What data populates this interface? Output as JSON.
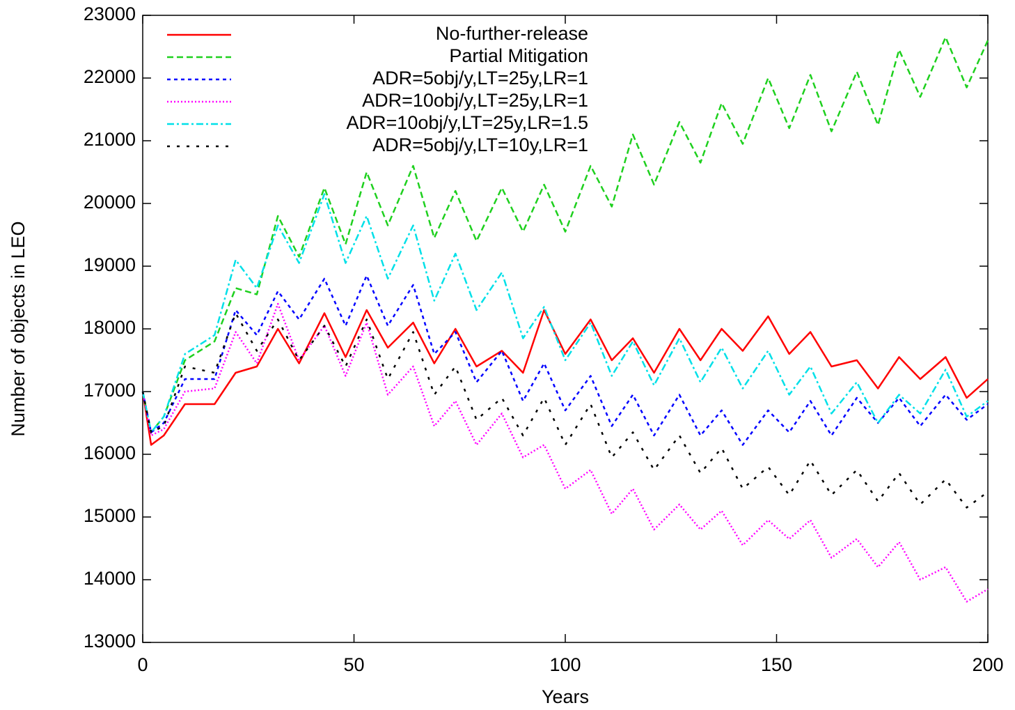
{
  "chart_data": {
    "type": "line",
    "xlabel": "Years",
    "ylabel": "Number of objects in LEO",
    "x": [
      0,
      2,
      5,
      10,
      17,
      22,
      27,
      32,
      37,
      43,
      48,
      53,
      58,
      64,
      69,
      74,
      79,
      85,
      90,
      95,
      100,
      106,
      111,
      116,
      121,
      127,
      132,
      137,
      142,
      148,
      153,
      158,
      163,
      169,
      174,
      179,
      184,
      190,
      195,
      200
    ],
    "xlim": [
      0,
      200
    ],
    "xticks": [
      0,
      50,
      100,
      150,
      200
    ],
    "ylim": [
      13000,
      23000
    ],
    "yticks": [
      13000,
      14000,
      15000,
      16000,
      17000,
      18000,
      19000,
      20000,
      21000,
      22000,
      23000
    ],
    "legend": "top-left",
    "series": [
      {
        "name": "No-further-release",
        "color": "#ff0000",
        "dash": "solid",
        "values": [
          17000,
          16150,
          16300,
          16800,
          16800,
          17300,
          17400,
          18000,
          17450,
          18250,
          17550,
          18300,
          17700,
          18100,
          17450,
          18000,
          17400,
          17650,
          17300,
          18300,
          17600,
          18150,
          17500,
          17850,
          17300,
          18000,
          17500,
          18000,
          17650,
          18200,
          17600,
          17950,
          17400,
          17500,
          17050,
          17550,
          17200,
          17550,
          16900,
          17200
        ]
      },
      {
        "name": "Partial Mitigation",
        "color": "#1ed01e",
        "dash": "dashed",
        "values": [
          17000,
          16350,
          16600,
          17500,
          17800,
          18650,
          18550,
          19800,
          19150,
          20250,
          19350,
          20500,
          19650,
          20600,
          19450,
          20200,
          19400,
          20250,
          19550,
          20300,
          19550,
          20600,
          19950,
          21100,
          20300,
          21300,
          20650,
          21600,
          20950,
          22000,
          21200,
          22050,
          21150,
          22100,
          21250,
          22450,
          21700,
          22650,
          21850,
          22600
        ]
      },
      {
        "name": "ADR=5obj/y,LT=25y,LR=1",
        "color": "#0000ff",
        "dash": "short",
        "values": [
          17000,
          16350,
          16500,
          17200,
          17200,
          18300,
          17900,
          18600,
          18150,
          18800,
          18050,
          18850,
          18050,
          18700,
          17600,
          17950,
          17150,
          17650,
          16850,
          17450,
          16700,
          17250,
          16450,
          16950,
          16300,
          16950,
          16300,
          16700,
          16150,
          16700,
          16350,
          16850,
          16300,
          16900,
          16500,
          16900,
          16450,
          16950,
          16550,
          16800
        ]
      },
      {
        "name": "ADR=10obj/y,LT=25y,LR=1",
        "color": "#ff00ff",
        "dash": "dotted",
        "values": [
          17000,
          16300,
          16400,
          17000,
          17050,
          17950,
          17450,
          18400,
          17500,
          18050,
          17250,
          18100,
          16950,
          17400,
          16450,
          16850,
          16150,
          16650,
          15950,
          16150,
          15450,
          15750,
          15050,
          15450,
          14800,
          15200,
          14800,
          15100,
          14550,
          14950,
          14650,
          14950,
          14350,
          14650,
          14200,
          14600,
          14000,
          14200,
          13650,
          13850
        ]
      },
      {
        "name": "ADR=10obj/y,LT=25y,LR=1.5",
        "color": "#00e0e8",
        "dash": "dashdot",
        "values": [
          17000,
          16350,
          16600,
          17600,
          17900,
          19100,
          18650,
          19650,
          19050,
          20150,
          19050,
          19800,
          18800,
          19650,
          18450,
          19200,
          18300,
          18900,
          17850,
          18350,
          17500,
          18100,
          17250,
          17800,
          17100,
          17850,
          17150,
          17700,
          17050,
          17650,
          16950,
          17400,
          16650,
          17150,
          16500,
          16950,
          16650,
          17350,
          16600,
          16850
        ]
      },
      {
        "name": "ADR=5obj/y,LT=10y,LR=1",
        "color": "#000000",
        "dash": "sparse",
        "values": [
          17000,
          16350,
          16450,
          17400,
          17300,
          18250,
          17650,
          18150,
          17500,
          18050,
          17400,
          18150,
          17200,
          17950,
          16950,
          17400,
          16550,
          16900,
          16300,
          16900,
          16150,
          16800,
          15950,
          16350,
          15750,
          16300,
          15700,
          16100,
          15450,
          15800,
          15350,
          15900,
          15350,
          15750,
          15250,
          15700,
          15200,
          15600,
          15150,
          15400
        ]
      }
    ]
  }
}
